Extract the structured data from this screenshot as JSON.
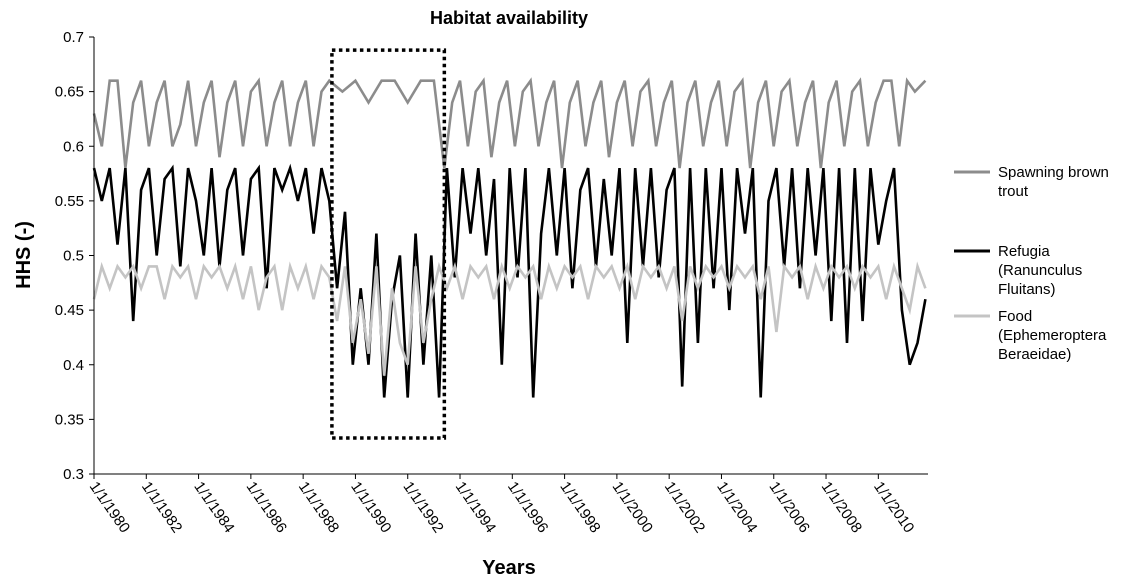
{
  "chart_data": {
    "type": "line",
    "title": "Habitat availability",
    "xlabel": "Years",
    "ylabel": "HHS (-)",
    "ylim": [
      0.3,
      0.7
    ],
    "yticks": [
      0.3,
      0.35,
      0.4,
      0.45,
      0.5,
      0.55,
      0.6,
      0.65,
      0.7
    ],
    "xlim": [
      1980,
      2011.9
    ],
    "xticks": [
      {
        "value": 1980,
        "label": "1/1/1980"
      },
      {
        "value": 1982,
        "label": "1/1/1982"
      },
      {
        "value": 1984,
        "label": "1/1/1984"
      },
      {
        "value": 1986,
        "label": "1/1/1986"
      },
      {
        "value": 1988,
        "label": "1/1/1988"
      },
      {
        "value": 1990,
        "label": "1/1/1990"
      },
      {
        "value": 1992,
        "label": "1/1/1992"
      },
      {
        "value": 1994,
        "label": "1/1/1994"
      },
      {
        "value": 1996,
        "label": "1/1/1996"
      },
      {
        "value": 1998,
        "label": "1/1/1998"
      },
      {
        "value": 2000,
        "label": "1/1/2000"
      },
      {
        "value": 2002,
        "label": "1/1/2002"
      },
      {
        "value": 2004,
        "label": "1/1/2004"
      },
      {
        "value": 2006,
        "label": "1/1/2006"
      },
      {
        "value": 2008,
        "label": "1/1/2008"
      },
      {
        "value": 2010,
        "label": "1/1/2010"
      }
    ],
    "grid": false,
    "legend_position": "right",
    "highlight_box": {
      "x_start": 1989.1,
      "x_end": 1993.4,
      "y_min": 0.333,
      "y_max": 0.688
    },
    "series": [
      {
        "name": "Spawning brown trout",
        "legend_lines": [
          "Spawning brown",
          "trout"
        ],
        "color": "#8c8c8c",
        "x": [
          1980.0,
          1980.3,
          1980.6,
          1980.9,
          1981.2,
          1981.5,
          1981.8,
          1982.1,
          1982.4,
          1982.7,
          1983.0,
          1983.3,
          1983.6,
          1983.9,
          1984.2,
          1984.5,
          1984.8,
          1985.1,
          1985.4,
          1985.7,
          1986.0,
          1986.3,
          1986.6,
          1986.9,
          1987.2,
          1987.5,
          1987.8,
          1988.1,
          1988.4,
          1988.7,
          1989.0,
          1989.5,
          1990.0,
          1990.5,
          1991.0,
          1991.5,
          1992.0,
          1992.5,
          1993.0,
          1993.4,
          1993.7,
          1994.0,
          1994.3,
          1994.6,
          1994.9,
          1995.2,
          1995.5,
          1995.8,
          1996.1,
          1996.4,
          1996.7,
          1997.0,
          1997.3,
          1997.6,
          1997.9,
          1998.2,
          1998.5,
          1998.8,
          1999.1,
          1999.4,
          1999.7,
          2000.0,
          2000.3,
          2000.6,
          2000.9,
          2001.2,
          2001.5,
          2001.8,
          2002.1,
          2002.4,
          2002.7,
          2003.0,
          2003.3,
          2003.6,
          2003.9,
          2004.2,
          2004.5,
          2004.8,
          2005.1,
          2005.4,
          2005.7,
          2006.0,
          2006.3,
          2006.6,
          2006.9,
          2007.2,
          2007.5,
          2007.8,
          2008.1,
          2008.4,
          2008.7,
          2009.0,
          2009.3,
          2009.6,
          2009.9,
          2010.2,
          2010.5,
          2010.8,
          2011.1,
          2011.4,
          2011.8
        ],
        "values": [
          0.63,
          0.6,
          0.66,
          0.66,
          0.58,
          0.64,
          0.66,
          0.6,
          0.64,
          0.66,
          0.6,
          0.62,
          0.66,
          0.6,
          0.64,
          0.66,
          0.59,
          0.64,
          0.66,
          0.6,
          0.65,
          0.66,
          0.6,
          0.64,
          0.66,
          0.6,
          0.64,
          0.66,
          0.6,
          0.65,
          0.66,
          0.65,
          0.66,
          0.64,
          0.66,
          0.66,
          0.64,
          0.66,
          0.66,
          0.58,
          0.64,
          0.66,
          0.6,
          0.65,
          0.66,
          0.59,
          0.64,
          0.66,
          0.6,
          0.65,
          0.66,
          0.6,
          0.64,
          0.66,
          0.58,
          0.64,
          0.66,
          0.6,
          0.64,
          0.66,
          0.59,
          0.64,
          0.66,
          0.6,
          0.65,
          0.66,
          0.6,
          0.64,
          0.66,
          0.58,
          0.64,
          0.66,
          0.6,
          0.64,
          0.66,
          0.6,
          0.65,
          0.66,
          0.58,
          0.64,
          0.66,
          0.6,
          0.65,
          0.66,
          0.6,
          0.64,
          0.66,
          0.58,
          0.64,
          0.66,
          0.6,
          0.65,
          0.66,
          0.6,
          0.64,
          0.66,
          0.66,
          0.6,
          0.66,
          0.65,
          0.66
        ]
      },
      {
        "name": "Refugia (Ranunculus Fluitans)",
        "legend_lines": [
          "Refugia",
          "(Ranunculus",
          "Fluitans)"
        ],
        "color": "#000000",
        "x": [
          1980.0,
          1980.3,
          1980.6,
          1980.9,
          1981.2,
          1981.5,
          1981.8,
          1982.1,
          1982.4,
          1982.7,
          1983.0,
          1983.3,
          1983.6,
          1983.9,
          1984.2,
          1984.5,
          1984.8,
          1985.1,
          1985.4,
          1985.7,
          1986.0,
          1986.3,
          1986.6,
          1986.9,
          1987.2,
          1987.5,
          1987.8,
          1988.1,
          1988.4,
          1988.7,
          1989.0,
          1989.3,
          1989.6,
          1989.9,
          1990.2,
          1990.5,
          1990.8,
          1991.1,
          1991.4,
          1991.7,
          1992.0,
          1992.3,
          1992.6,
          1992.9,
          1993.2,
          1993.5,
          1993.8,
          1994.1,
          1994.4,
          1994.7,
          1995.0,
          1995.3,
          1995.6,
          1995.9,
          1996.2,
          1996.5,
          1996.8,
          1997.1,
          1997.4,
          1997.7,
          1998.0,
          1998.3,
          1998.6,
          1998.9,
          1999.2,
          1999.5,
          1999.8,
          2000.1,
          2000.4,
          2000.7,
          2001.0,
          2001.3,
          2001.6,
          2001.9,
          2002.2,
          2002.5,
          2002.8,
          2003.1,
          2003.4,
          2003.7,
          2004.0,
          2004.3,
          2004.6,
          2004.9,
          2005.2,
          2005.5,
          2005.8,
          2006.1,
          2006.4,
          2006.7,
          2007.0,
          2007.3,
          2007.6,
          2007.9,
          2008.2,
          2008.5,
          2008.8,
          2009.1,
          2009.4,
          2009.7,
          2010.0,
          2010.3,
          2010.6,
          2010.9,
          2011.2,
          2011.5,
          2011.8
        ],
        "values": [
          0.58,
          0.55,
          0.58,
          0.51,
          0.58,
          0.44,
          0.56,
          0.58,
          0.5,
          0.57,
          0.58,
          0.49,
          0.58,
          0.55,
          0.5,
          0.58,
          0.49,
          0.56,
          0.58,
          0.5,
          0.57,
          0.58,
          0.47,
          0.58,
          0.56,
          0.58,
          0.55,
          0.58,
          0.52,
          0.58,
          0.55,
          0.47,
          0.54,
          0.4,
          0.47,
          0.4,
          0.52,
          0.37,
          0.46,
          0.5,
          0.37,
          0.52,
          0.4,
          0.5,
          0.37,
          0.58,
          0.48,
          0.58,
          0.52,
          0.58,
          0.5,
          0.57,
          0.4,
          0.58,
          0.48,
          0.58,
          0.37,
          0.52,
          0.58,
          0.5,
          0.58,
          0.47,
          0.56,
          0.58,
          0.49,
          0.57,
          0.5,
          0.58,
          0.42,
          0.58,
          0.49,
          0.58,
          0.48,
          0.56,
          0.58,
          0.38,
          0.58,
          0.42,
          0.58,
          0.47,
          0.58,
          0.45,
          0.58,
          0.52,
          0.58,
          0.37,
          0.55,
          0.58,
          0.49,
          0.58,
          0.47,
          0.58,
          0.5,
          0.58,
          0.44,
          0.58,
          0.42,
          0.58,
          0.44,
          0.58,
          0.51,
          0.55,
          0.58,
          0.45,
          0.4,
          0.42,
          0.46
        ]
      },
      {
        "name": "Food (Ephemeroptera Beraeidae)",
        "legend_lines": [
          "Food",
          "(Ephemeroptera",
          "Beraeidae)"
        ],
        "color": "#c4c4c4",
        "x": [
          1980.0,
          1980.3,
          1980.6,
          1980.9,
          1981.2,
          1981.5,
          1981.8,
          1982.1,
          1982.4,
          1982.7,
          1983.0,
          1983.3,
          1983.6,
          1983.9,
          1984.2,
          1984.5,
          1984.8,
          1985.1,
          1985.4,
          1985.7,
          1986.0,
          1986.3,
          1986.6,
          1986.9,
          1987.2,
          1987.5,
          1987.8,
          1988.1,
          1988.4,
          1988.7,
          1989.0,
          1989.3,
          1989.6,
          1989.9,
          1990.2,
          1990.5,
          1990.8,
          1991.1,
          1991.4,
          1991.7,
          1992.0,
          1992.3,
          1992.6,
          1992.9,
          1993.2,
          1993.5,
          1993.8,
          1994.1,
          1994.4,
          1994.7,
          1995.0,
          1995.3,
          1995.6,
          1995.9,
          1996.2,
          1996.5,
          1996.8,
          1997.1,
          1997.4,
          1997.7,
          1998.0,
          1998.3,
          1998.6,
          1998.9,
          1999.2,
          1999.5,
          1999.8,
          2000.1,
          2000.4,
          2000.7,
          2001.0,
          2001.3,
          2001.6,
          2001.9,
          2002.2,
          2002.5,
          2002.8,
          2003.1,
          2003.4,
          2003.7,
          2004.0,
          2004.3,
          2004.6,
          2004.9,
          2005.2,
          2005.5,
          2005.8,
          2006.1,
          2006.4,
          2006.7,
          2007.0,
          2007.3,
          2007.6,
          2007.9,
          2008.2,
          2008.5,
          2008.8,
          2009.1,
          2009.4,
          2009.7,
          2010.0,
          2010.3,
          2010.6,
          2010.9,
          2011.2,
          2011.5,
          2011.8
        ],
        "values": [
          0.46,
          0.49,
          0.47,
          0.49,
          0.48,
          0.49,
          0.47,
          0.49,
          0.49,
          0.46,
          0.49,
          0.48,
          0.49,
          0.46,
          0.49,
          0.48,
          0.49,
          0.47,
          0.49,
          0.46,
          0.49,
          0.45,
          0.48,
          0.49,
          0.45,
          0.49,
          0.47,
          0.49,
          0.46,
          0.49,
          0.48,
          0.44,
          0.49,
          0.42,
          0.46,
          0.41,
          0.49,
          0.39,
          0.47,
          0.42,
          0.4,
          0.49,
          0.42,
          0.46,
          0.49,
          0.47,
          0.49,
          0.46,
          0.49,
          0.48,
          0.49,
          0.46,
          0.49,
          0.47,
          0.49,
          0.48,
          0.49,
          0.46,
          0.49,
          0.47,
          0.49,
          0.48,
          0.49,
          0.46,
          0.49,
          0.48,
          0.49,
          0.47,
          0.49,
          0.46,
          0.49,
          0.48,
          0.49,
          0.47,
          0.49,
          0.44,
          0.49,
          0.47,
          0.49,
          0.48,
          0.49,
          0.47,
          0.49,
          0.48,
          0.49,
          0.46,
          0.49,
          0.43,
          0.49,
          0.48,
          0.49,
          0.46,
          0.49,
          0.47,
          0.49,
          0.48,
          0.49,
          0.47,
          0.49,
          0.48,
          0.49,
          0.46,
          0.49,
          0.47,
          0.45,
          0.49,
          0.47
        ]
      }
    ]
  }
}
